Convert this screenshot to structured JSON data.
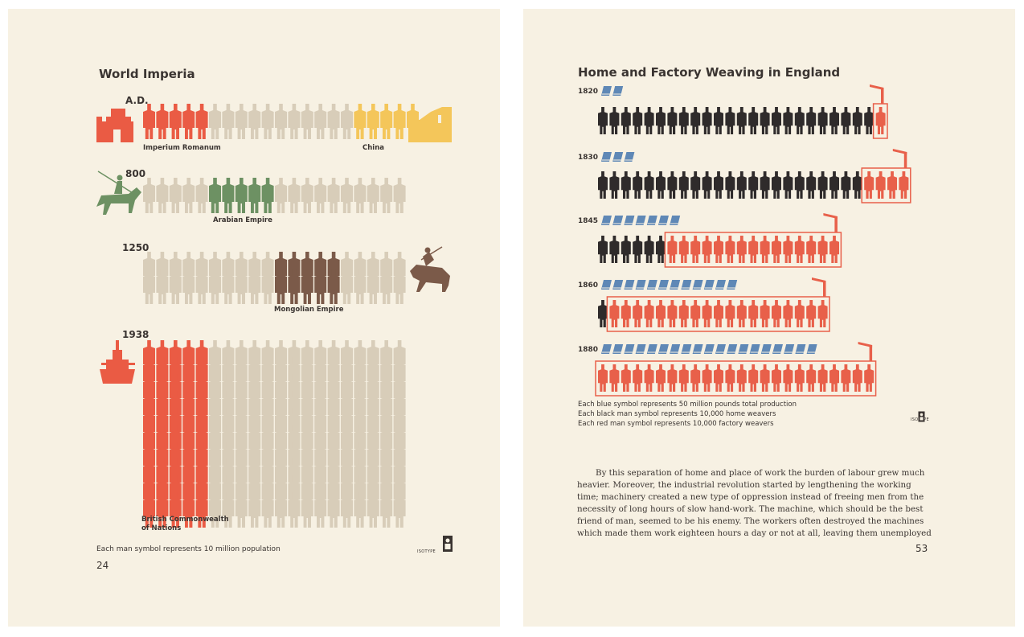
{
  "colors": {
    "roman": "#ea5b44",
    "china": "#f4c65a",
    "arab": "#6d9163",
    "mongol": "#7b5a49",
    "british": "#ea5b44",
    "neutral": "#d8cdb9",
    "black_weaver": "#2f2b2b",
    "red_weaver": "#e8604a",
    "blue_symbol": "#5f88b6",
    "text": "#3a3431"
  },
  "left_page": {
    "title": "World Imperia",
    "periods": [
      {
        "year": "A.D.",
        "labels": [
          "Imperium Romanum",
          "China"
        ]
      },
      {
        "year": "800",
        "labels": [
          "Arabian Empire"
        ]
      },
      {
        "year": "1250",
        "labels": [
          "Mongolian Empire"
        ]
      },
      {
        "year": "1938",
        "labels": [
          "British Commonwealth",
          "of Nations"
        ]
      }
    ],
    "caption": "Each man symbol represents 10 million population",
    "isotype_mark": "ISOTYPE",
    "page_number": "24",
    "icons": [
      "roman-fort-icon",
      "great-wall-icon",
      "arab-horseman-icon",
      "mongol-horseman-icon",
      "battleship-icon"
    ]
  },
  "right_page": {
    "title": "Home and Factory Weaving in England",
    "years": [
      "1820",
      "1830",
      "1845",
      "1860",
      "1880"
    ],
    "legend": [
      "Each blue symbol represents 50 million pounds total production",
      "Each black man symbol represents 10,000 home weavers",
      "Each red man symbol represents 10,000 factory weavers"
    ],
    "isotype_mark": "ISOTYPE",
    "body_text": [
      "By this separation of home and place of work the burden of labour grew much",
      "heavier. Moreover, the industrial revolution started by lengthening the working",
      "time; machinery created a new type of oppression instead of freeing men from the",
      "necessity of long hours of slow hand-work. The machine, which should be the best",
      "friend of man, seemed to be his enemy. The workers often destroyed the machines",
      "which made them work eighteen hours a day or not at all, leaving them unemployed"
    ],
    "page_number": "53",
    "icons": [
      "factory-chimney-icon",
      "cloth-bolt-icon"
    ]
  },
  "chart_data": [
    {
      "type": "table",
      "title": "World Imperia",
      "unit": "Each man symbol represents 10 million population",
      "rows": [
        {
          "year": "A.D.",
          "series": [
            {
              "name": "Imperium Romanum",
              "value": 5,
              "color": "roman"
            },
            {
              "name": "",
              "value": 11,
              "color": "neutral"
            },
            {
              "name": "China",
              "value": 5,
              "color": "china"
            }
          ]
        },
        {
          "year": "800",
          "series": [
            {
              "name": "",
              "value": 5,
              "color": "neutral"
            },
            {
              "name": "Arabian Empire",
              "value": 5,
              "color": "arab"
            },
            {
              "name": "",
              "value": 10,
              "color": "neutral"
            }
          ]
        },
        {
          "year": "1250",
          "stack_rows": 2,
          "series": [
            {
              "name": "",
              "value": 10,
              "color": "neutral"
            },
            {
              "name": "Mongolian Empire",
              "value": 5,
              "color": "mongol"
            },
            {
              "name": "",
              "value": 5,
              "color": "neutral"
            }
          ]
        },
        {
          "year": "1938",
          "stack_rows": 10,
          "series": [
            {
              "name": "British Commonwealth of Nations",
              "value": 5,
              "color": "british"
            },
            {
              "name": "",
              "value": 15,
              "color": "neutral"
            }
          ]
        }
      ]
    },
    {
      "type": "table",
      "title": "Home and Factory Weaving in England",
      "rows": [
        {
          "year": "1820",
          "production_symbols": 2,
          "home_weavers": 24,
          "factory_weavers": 1
        },
        {
          "year": "1830",
          "production_symbols": 3,
          "home_weavers": 23,
          "factory_weavers": 4
        },
        {
          "year": "1845",
          "production_symbols": 7,
          "home_weavers": 6,
          "factory_weavers": 15
        },
        {
          "year": "1860",
          "production_symbols": 12,
          "home_weavers": 1,
          "factory_weavers": 19
        },
        {
          "year": "1880",
          "production_symbols": 19,
          "home_weavers": 0,
          "factory_weavers": 24
        }
      ]
    }
  ]
}
